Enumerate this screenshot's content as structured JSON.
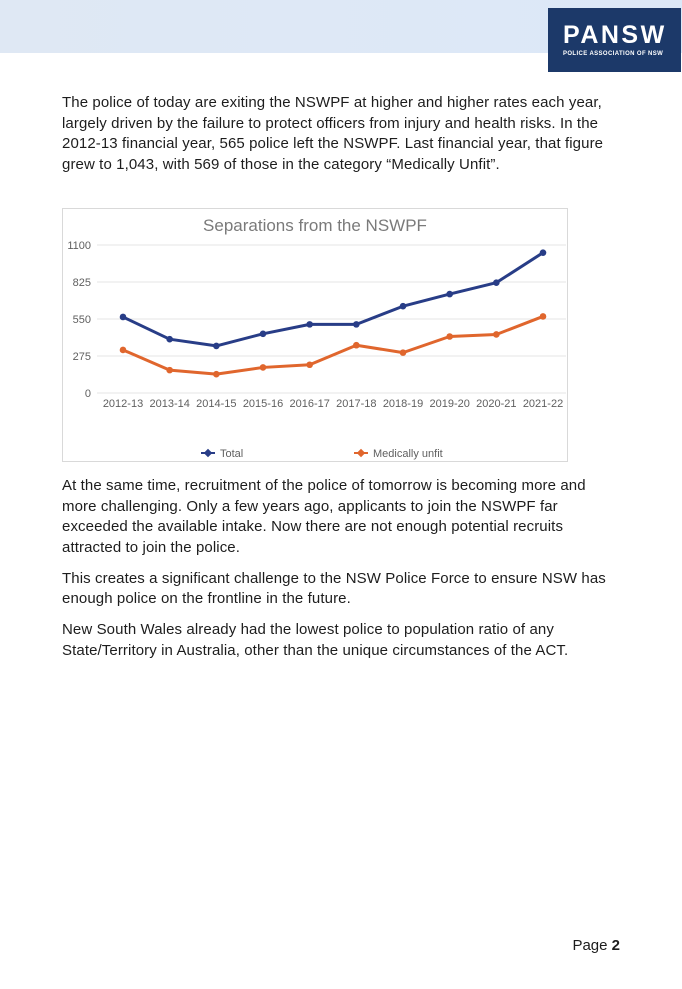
{
  "header": {
    "band_color": "#dde8f6",
    "logo": {
      "title": "PANSW",
      "subtitle": "POLICE ASSOCIATION OF NSW",
      "bg_color": "#1c3969",
      "text_color": "#ffffff"
    }
  },
  "paragraphs": [
    "The police of today are exiting the NSWPF at higher and higher rates each year, largely driven by the failure to protect officers from injury and health risks. In the 2012-13 financial year, 565 police left the NSWPF. Last financial year, that figure grew to 1,043, with 569 of those in the category “Medically Unfit”.",
    "At the same time, recruitment of the police of tomorrow is becoming more and more challenging. Only a few years ago, applicants to join the NSWPF far exceeded the available intake. Now there are not enough potential recruits attracted to join the police.",
    "This creates a significant challenge to the NSW Police Force to ensure NSW has enough police on the frontline in the future.",
    "New South Wales already had the lowest police to population ratio of any State/Territory in Australia, other than the unique circumstances of the ACT."
  ],
  "chart_data": {
    "type": "line",
    "title": "Separations from the NSWPF",
    "title_color": "#7a7a7a",
    "categories": [
      "2012-13",
      "2013-14",
      "2014-15",
      "2015-16",
      "2016-17",
      "2017-18",
      "2018-19",
      "2019-20",
      "2020-21",
      "2021-22"
    ],
    "series": [
      {
        "name": "Total",
        "color": "#283d87",
        "values": [
          565,
          400,
          350,
          440,
          510,
          510,
          645,
          735,
          820,
          1043
        ]
      },
      {
        "name": "Medically unfit",
        "color": "#e0662d",
        "values": [
          320,
          170,
          140,
          190,
          210,
          355,
          300,
          420,
          435,
          569
        ]
      }
    ],
    "y_ticks": [
      0,
      275,
      550,
      825,
      1100
    ],
    "ylim": [
      0,
      1100
    ],
    "grid": true,
    "gridline_color": "#e4e4e4",
    "axis_label_color": "#5f5f5f",
    "legend_position": "bottom"
  },
  "page": {
    "footer_label": "Page",
    "footer_number": "2"
  }
}
